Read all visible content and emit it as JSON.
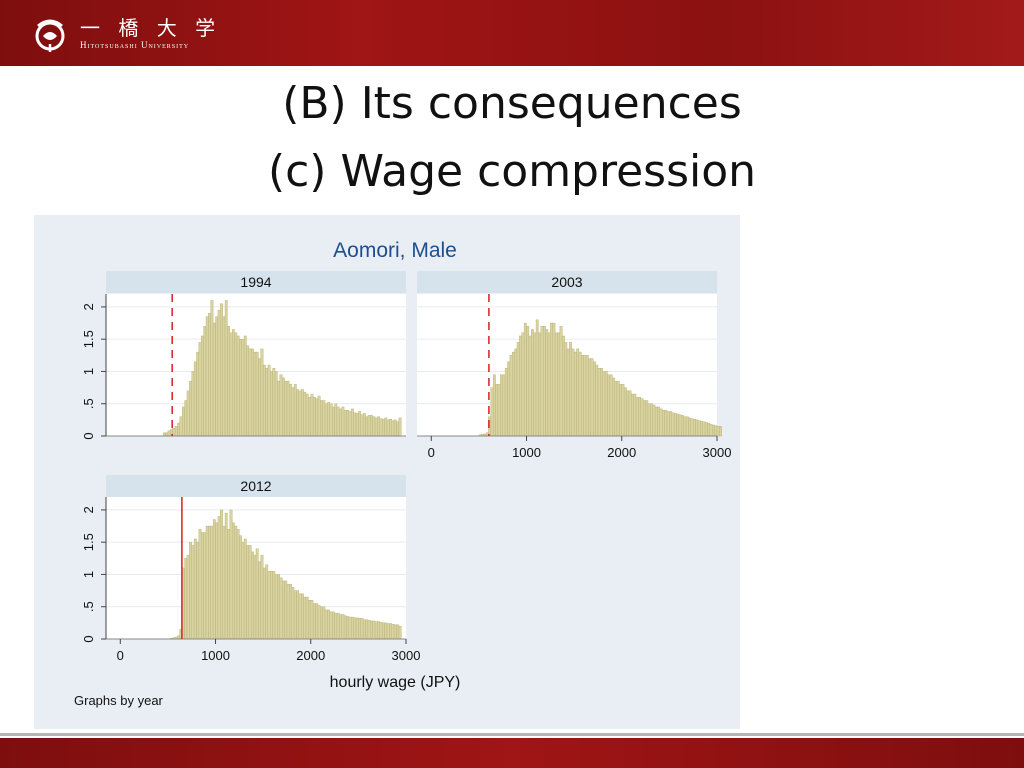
{
  "header": {
    "logo_jp": "一 橋 大 学",
    "logo_en": "Hitotsubashi University",
    "logo_icon": "hitotsubashi-emblem-icon"
  },
  "slide": {
    "title_line1": "(B) Its consequences",
    "title_line2": "(c) Wage compression"
  },
  "colors": {
    "bar_fill": "#d8d3a0",
    "bar_stroke": "#b6af72",
    "min_wage_line": "#d62020",
    "panel_bg": "#e8eef4",
    "strip_bg": "#d7e3ec",
    "title_blue": "#1f4e8c",
    "brand_red": "#9b1414"
  },
  "chart_data": {
    "type": "bar",
    "title": "Aomori, Male",
    "xlabel": "hourly wage (JPY)",
    "ylabel": "",
    "note": "Graphs by year",
    "xlim": [
      -150,
      3000
    ],
    "ylim": [
      0,
      2.2
    ],
    "xticks": [
      0,
      1000,
      2000,
      3000
    ],
    "yticks": [
      0,
      0.5,
      1,
      1.5,
      2
    ],
    "ytick_labels": [
      "0",
      ".5",
      "1",
      "1.5",
      "2"
    ],
    "bin_start": 0,
    "bin_width": 25,
    "panels": [
      {
        "label": "1994",
        "min_wage": 545,
        "min_wage_style": "dashed",
        "values": [
          0,
          0,
          0,
          0,
          0,
          0,
          0,
          0,
          0,
          0,
          0,
          0,
          0,
          0,
          0,
          0,
          0,
          0,
          0.05,
          0.05,
          0.08,
          0.1,
          0.12,
          0.15,
          0.2,
          0.3,
          0.45,
          0.55,
          0.7,
          0.85,
          1.0,
          1.15,
          1.3,
          1.45,
          1.55,
          1.7,
          1.85,
          1.9,
          2.1,
          1.75,
          1.85,
          1.95,
          2.05,
          1.85,
          2.1,
          1.7,
          1.6,
          1.65,
          1.6,
          1.55,
          1.5,
          1.5,
          1.55,
          1.4,
          1.35,
          1.35,
          1.3,
          1.3,
          1.2,
          1.35,
          1.1,
          1.05,
          1.1,
          1.0,
          1.05,
          1.0,
          0.85,
          0.95,
          0.9,
          0.85,
          0.85,
          0.8,
          0.75,
          0.8,
          0.72,
          0.7,
          0.72,
          0.68,
          0.65,
          0.6,
          0.65,
          0.6,
          0.58,
          0.62,
          0.55,
          0.55,
          0.5,
          0.52,
          0.5,
          0.45,
          0.5,
          0.45,
          0.42,
          0.45,
          0.4,
          0.4,
          0.38,
          0.42,
          0.36,
          0.35,
          0.38,
          0.33,
          0.35,
          0.3,
          0.32,
          0.32,
          0.3,
          0.28,
          0.3,
          0.27,
          0.26,
          0.28,
          0.25,
          0.26,
          0.24,
          0.25,
          0.22,
          0.28
        ]
      },
      {
        "label": "2003",
        "min_wage": 605,
        "min_wage_style": "dashed",
        "values": [
          0,
          0,
          0,
          0,
          0,
          0,
          0,
          0,
          0,
          0,
          0,
          0,
          0,
          0,
          0,
          0,
          0,
          0,
          0,
          0,
          0.02,
          0.03,
          0.03,
          0.05,
          0.3,
          0.75,
          0.95,
          0.8,
          0.8,
          0.95,
          0.95,
          1.05,
          1.15,
          1.25,
          1.3,
          1.35,
          1.45,
          1.55,
          1.6,
          1.75,
          1.7,
          1.55,
          1.65,
          1.6,
          1.8,
          1.6,
          1.7,
          1.7,
          1.65,
          1.6,
          1.75,
          1.75,
          1.6,
          1.6,
          1.7,
          1.55,
          1.45,
          1.35,
          1.45,
          1.35,
          1.3,
          1.35,
          1.3,
          1.25,
          1.25,
          1.25,
          1.2,
          1.2,
          1.15,
          1.1,
          1.05,
          1.05,
          1.0,
          1.0,
          0.95,
          0.95,
          0.9,
          0.85,
          0.85,
          0.8,
          0.8,
          0.75,
          0.7,
          0.7,
          0.65,
          0.65,
          0.6,
          0.6,
          0.58,
          0.55,
          0.55,
          0.5,
          0.5,
          0.48,
          0.45,
          0.45,
          0.42,
          0.4,
          0.4,
          0.38,
          0.38,
          0.36,
          0.35,
          0.34,
          0.33,
          0.32,
          0.3,
          0.3,
          0.28,
          0.27,
          0.26,
          0.25,
          0.24,
          0.23,
          0.22,
          0.21,
          0.2,
          0.18,
          0.17,
          0.16,
          0.15,
          0.15
        ]
      },
      {
        "label": "2012",
        "min_wage": 647,
        "min_wage_style": "solid",
        "values": [
          0,
          0,
          0,
          0,
          0,
          0,
          0,
          0,
          0,
          0,
          0,
          0,
          0,
          0,
          0,
          0,
          0,
          0,
          0,
          0,
          0,
          0.01,
          0.02,
          0.03,
          0.05,
          0.15,
          1.1,
          1.25,
          1.3,
          1.5,
          1.45,
          1.55,
          1.5,
          1.7,
          1.65,
          1.65,
          1.75,
          1.75,
          1.75,
          1.85,
          1.8,
          1.9,
          2.0,
          1.75,
          1.95,
          1.7,
          2.0,
          1.8,
          1.75,
          1.7,
          1.6,
          1.5,
          1.55,
          1.45,
          1.45,
          1.35,
          1.3,
          1.4,
          1.2,
          1.3,
          1.1,
          1.15,
          1.05,
          1.05,
          1.05,
          1.0,
          1.0,
          0.95,
          0.9,
          0.9,
          0.85,
          0.85,
          0.8,
          0.75,
          0.75,
          0.7,
          0.7,
          0.65,
          0.65,
          0.6,
          0.6,
          0.55,
          0.55,
          0.52,
          0.5,
          0.5,
          0.45,
          0.45,
          0.42,
          0.42,
          0.4,
          0.4,
          0.38,
          0.38,
          0.36,
          0.35,
          0.34,
          0.34,
          0.33,
          0.33,
          0.32,
          0.32,
          0.3,
          0.3,
          0.29,
          0.28,
          0.28,
          0.27,
          0.27,
          0.26,
          0.25,
          0.25,
          0.24,
          0.24,
          0.23,
          0.22,
          0.22,
          0.2
        ]
      }
    ]
  }
}
